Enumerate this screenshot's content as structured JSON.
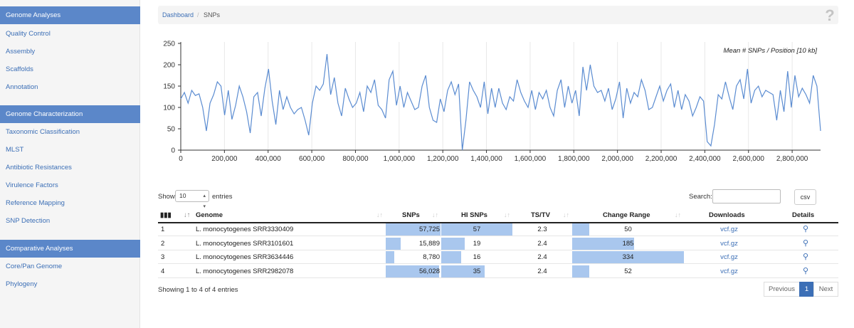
{
  "sidebar": {
    "sections": [
      {
        "header": "Genome Analyses",
        "items": [
          "Quality Control",
          "Assembly",
          "Scaffolds",
          "Annotation"
        ]
      },
      {
        "header": "Genome Characterization",
        "items": [
          "Taxonomic Classification",
          "MLST",
          "Antibiotic Resistances",
          "Virulence Factors",
          "Reference Mapping",
          "SNP Detection"
        ]
      },
      {
        "header": "Comparative Analyses",
        "items": [
          "Core/Pan Genome",
          "Phylogeny"
        ]
      }
    ]
  },
  "breadcrumb": {
    "home": "Dashboard",
    "separator": "/",
    "current": "SNPs"
  },
  "help_icon": "question-mark-icon",
  "chart_data": {
    "type": "line",
    "title": "Mean # SNPs / Position [10 kb]",
    "xlabel": "",
    "ylabel": "",
    "xlim": [
      0,
      2930000
    ],
    "ylim": [
      0,
      250
    ],
    "x_ticks": [
      "0",
      "200,000",
      "400,000",
      "600,000",
      "800,000",
      "1,000,000",
      "1,200,000",
      "1,400,000",
      "1,600,000",
      "1,800,000",
      "2,000,000",
      "2,200,000",
      "2,400,000",
      "2,600,000",
      "2,800,000"
    ],
    "y_ticks": [
      "0",
      "50",
      "100",
      "150",
      "200",
      "250"
    ],
    "grid": "vertical",
    "color": "#5b8cd1",
    "series": [
      {
        "values": [
          120,
          135,
          110,
          140,
          128,
          132,
          100,
          45,
          110,
          130,
          160,
          150,
          82,
          140,
          72,
          105,
          150,
          125,
          90,
          40,
          125,
          135,
          80,
          145,
          190,
          115,
          60,
          140,
          95,
          125,
          100,
          85,
          95,
          100,
          70,
          35,
          110,
          150,
          140,
          155,
          225,
          130,
          170,
          110,
          80,
          145,
          120,
          100,
          110,
          135,
          90,
          150,
          135,
          165,
          105,
          95,
          75,
          165,
          185,
          105,
          150,
          100,
          135,
          115,
          95,
          100,
          150,
          175,
          100,
          70,
          65,
          120,
          90,
          140,
          160,
          130,
          155,
          0,
          70,
          160,
          140,
          125,
          100,
          160,
          85,
          145,
          100,
          145,
          110,
          95,
          125,
          115,
          165,
          135,
          115,
          100,
          140,
          95,
          135,
          120,
          140,
          100,
          80,
          140,
          165,
          100,
          150,
          110,
          140,
          80,
          195,
          140,
          200,
          150,
          135,
          140,
          115,
          145,
          95,
          120,
          160,
          75,
          145,
          110,
          135,
          125,
          165,
          140,
          95,
          100,
          125,
          150,
          115,
          140,
          155,
          100,
          140,
          95,
          130,
          115,
          80,
          100,
          125,
          115,
          20,
          10,
          60,
          130,
          120,
          160,
          125,
          95,
          150,
          165,
          120,
          190,
          110,
          140,
          150,
          125,
          140,
          135,
          130,
          70,
          140,
          90,
          185,
          100,
          175,
          125,
          145,
          130,
          110,
          175,
          150,
          45
        ]
      }
    ]
  },
  "table": {
    "show_label": "Show",
    "show_value": "10",
    "entries_label": "entries",
    "search_label": "Search:",
    "search_value": "",
    "csv_label": "csv",
    "columns": [
      "Genome",
      "SNPs",
      "HI SNPs",
      "TS/TV",
      "Change Range",
      "Downloads",
      "Details"
    ],
    "rows": [
      {
        "index": "1",
        "genome": "L. monocytogenes SRR3330409",
        "snps": "57,725",
        "snps_frac": 1.0,
        "hi_snps": "57",
        "hi_frac": 1.0,
        "tstv": "2.3",
        "change": "50",
        "change_frac": 0.15,
        "download": "vcf.gz"
      },
      {
        "index": "2",
        "genome": "L. monocytogenes SRR3101601",
        "snps": "15,889",
        "snps_frac": 0.275,
        "hi_snps": "19",
        "hi_frac": 0.333,
        "tstv": "2.4",
        "change": "185",
        "change_frac": 0.554,
        "download": "vcf.gz"
      },
      {
        "index": "3",
        "genome": "L. monocytogenes SRR3634446",
        "snps": "8,780",
        "snps_frac": 0.152,
        "hi_snps": "16",
        "hi_frac": 0.281,
        "tstv": "2.4",
        "change": "334",
        "change_frac": 1.0,
        "download": "vcf.gz"
      },
      {
        "index": "4",
        "genome": "L. monocytogenes SRR2982078",
        "snps": "56,028",
        "snps_frac": 0.971,
        "hi_snps": "35",
        "hi_frac": 0.614,
        "tstv": "2.4",
        "change": "52",
        "change_frac": 0.156,
        "download": "vcf.gz"
      }
    ],
    "info": "Showing 1 to 4 of 4 entries",
    "pagination": {
      "previous": "Previous",
      "current": "1",
      "next": "Next"
    },
    "bar_color": "#a9c7ee",
    "details_icon": "magnifier-icon"
  }
}
